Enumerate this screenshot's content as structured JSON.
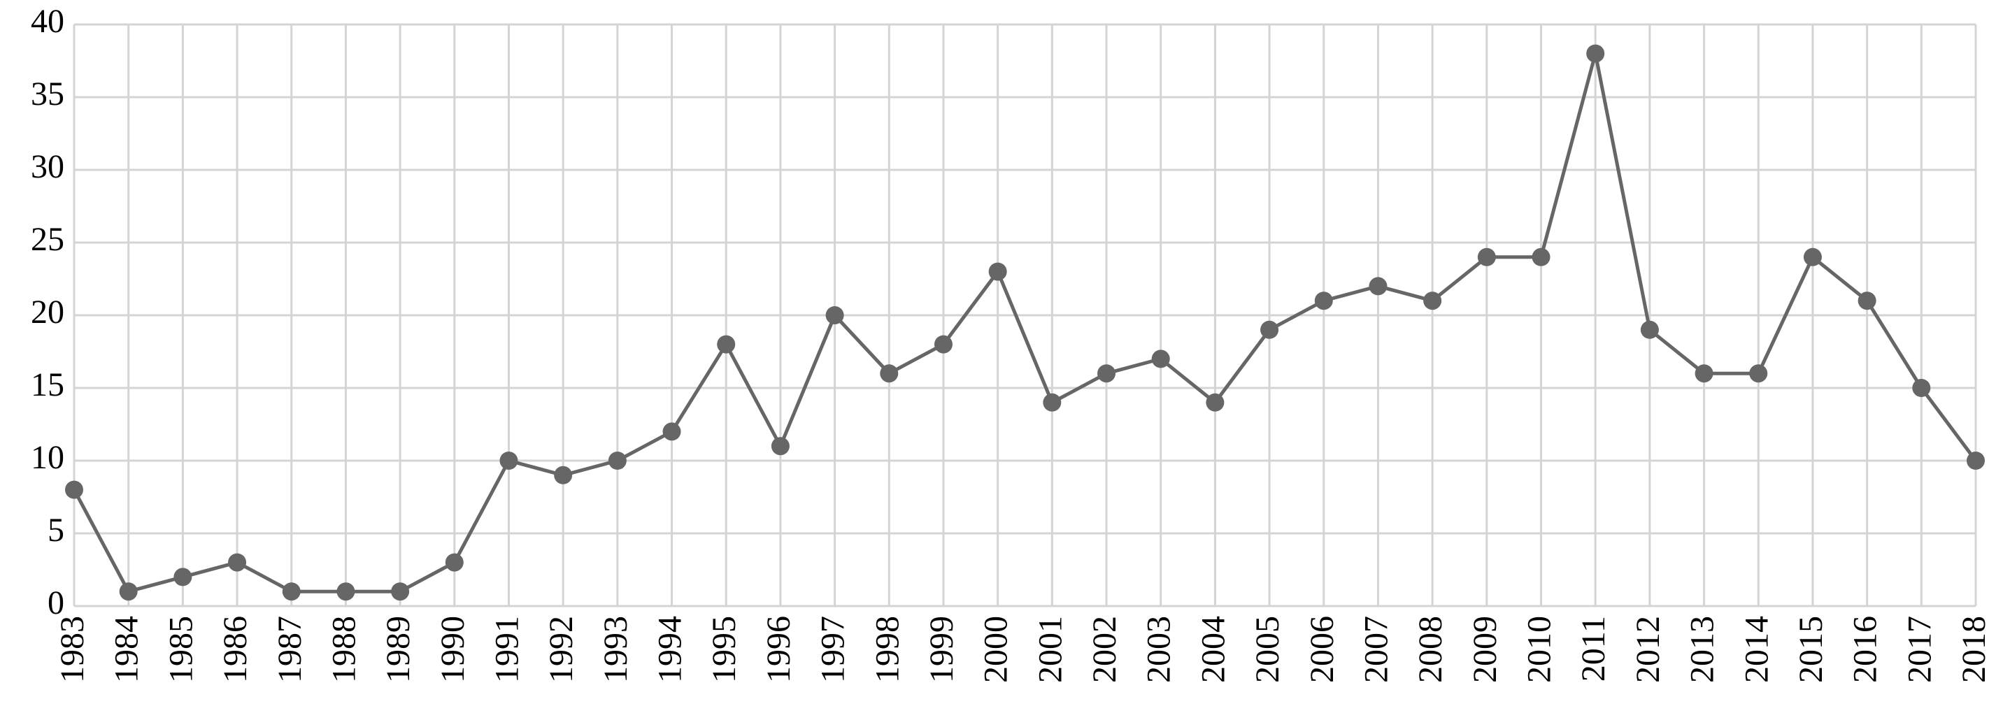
{
  "chart_data": {
    "type": "line",
    "categories": [
      "1983",
      "1984",
      "1985",
      "1986",
      "1987",
      "1988",
      "1989",
      "1990",
      "1991",
      "1992",
      "1993",
      "1994",
      "1995",
      "1996",
      "1997",
      "1998",
      "1999",
      "2000",
      "2001",
      "2002",
      "2003",
      "2004",
      "2005",
      "2006",
      "2007",
      "2008",
      "2009",
      "2010",
      "2011",
      "2012",
      "2013",
      "2014",
      "2015",
      "2016",
      "2017",
      "2018"
    ],
    "series": [
      {
        "color": "#666666",
        "values": [
          8,
          1,
          2,
          3,
          1,
          1,
          1,
          3,
          10,
          9,
          10,
          12,
          18,
          11,
          20,
          16,
          18,
          23,
          14,
          16,
          17,
          14,
          19,
          21,
          22,
          21,
          24,
          24,
          38,
          19,
          16,
          16,
          24,
          21,
          15,
          10
        ]
      }
    ],
    "ylim": [
      0,
      40
    ],
    "yticks": [
      0,
      5,
      10,
      15,
      20,
      25,
      30,
      35,
      40
    ],
    "grid": true
  }
}
